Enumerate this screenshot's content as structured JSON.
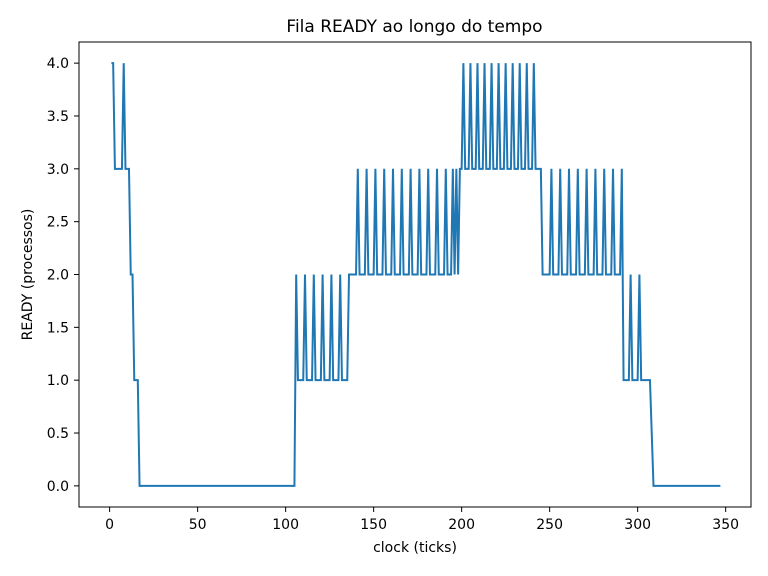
{
  "chart_data": {
    "type": "line",
    "title": "Fila READY ao longo do tempo",
    "xlabel": "clock (ticks)",
    "ylabel": "READY (processos)",
    "xlim": [
      -17.4,
      364.4
    ],
    "ylim": [
      -0.2,
      4.2
    ],
    "xticks": [
      0,
      50,
      100,
      150,
      200,
      250,
      300,
      350
    ],
    "xtick_labels": [
      "0",
      "50",
      "100",
      "150",
      "200",
      "250",
      "300",
      "350"
    ],
    "yticks": [
      0.0,
      0.5,
      1.0,
      1.5,
      2.0,
      2.5,
      3.0,
      3.5,
      4.0
    ],
    "ytick_labels": [
      "0.0",
      "0.5",
      "1.0",
      "1.5",
      "2.0",
      "2.5",
      "3.0",
      "3.5",
      "4.0"
    ],
    "grid": false,
    "line_color": "#1f77b4",
    "series": [
      {
        "x": [
          1,
          2,
          3,
          7,
          8,
          9,
          10,
          11,
          12,
          13,
          14,
          16,
          17,
          105,
          106,
          107,
          110,
          111,
          112,
          115,
          116,
          117,
          120,
          121,
          122,
          125,
          126,
          127,
          130,
          131,
          132,
          135,
          136,
          137,
          140,
          141,
          142,
          145,
          146,
          147,
          150,
          151,
          152,
          155,
          156,
          157,
          160,
          161,
          162,
          165,
          166,
          167,
          170,
          171,
          172,
          175,
          176,
          177,
          180,
          181,
          182,
          185,
          186,
          187,
          190,
          191,
          192,
          194,
          195,
          196,
          197,
          198,
          199,
          200,
          201,
          202,
          204,
          205,
          206,
          208,
          209,
          210,
          212,
          213,
          214,
          216,
          217,
          218,
          220,
          221,
          222,
          224,
          225,
          226,
          228,
          229,
          230,
          232,
          233,
          234,
          236,
          237,
          238,
          240,
          241,
          242,
          244,
          245,
          246,
          250,
          251,
          252,
          255,
          256,
          257,
          260,
          261,
          262,
          265,
          266,
          267,
          270,
          271,
          272,
          275,
          276,
          277,
          280,
          281,
          282,
          285,
          286,
          287,
          290,
          291,
          292,
          295,
          296,
          297,
          300,
          301,
          302,
          305,
          306,
          307,
          309,
          310,
          347
        ],
        "y": [
          4,
          4,
          3,
          3,
          4,
          3,
          3,
          3,
          2,
          2,
          1,
          1,
          0,
          0,
          2,
          1,
          1,
          2,
          1,
          1,
          2,
          1,
          1,
          2,
          1,
          1,
          2,
          1,
          1,
          2,
          1,
          1,
          2,
          2,
          2,
          3,
          2,
          2,
          3,
          2,
          2,
          3,
          2,
          2,
          3,
          2,
          2,
          3,
          2,
          2,
          3,
          2,
          2,
          3,
          2,
          2,
          3,
          2,
          2,
          3,
          2,
          2,
          3,
          2,
          2,
          3,
          2,
          2,
          3,
          2,
          3,
          2,
          3,
          3,
          4,
          3,
          3,
          4,
          3,
          3,
          4,
          3,
          3,
          4,
          3,
          3,
          4,
          3,
          3,
          4,
          3,
          3,
          4,
          3,
          3,
          4,
          3,
          3,
          4,
          3,
          3,
          4,
          3,
          3,
          4,
          3,
          3,
          3,
          2,
          2,
          3,
          2,
          2,
          3,
          2,
          2,
          3,
          2,
          2,
          3,
          2,
          2,
          3,
          2,
          2,
          3,
          2,
          2,
          3,
          2,
          2,
          3,
          2,
          2,
          3,
          1,
          1,
          2,
          1,
          1,
          2,
          1,
          1,
          1,
          1,
          0,
          0,
          0
        ]
      }
    ]
  }
}
